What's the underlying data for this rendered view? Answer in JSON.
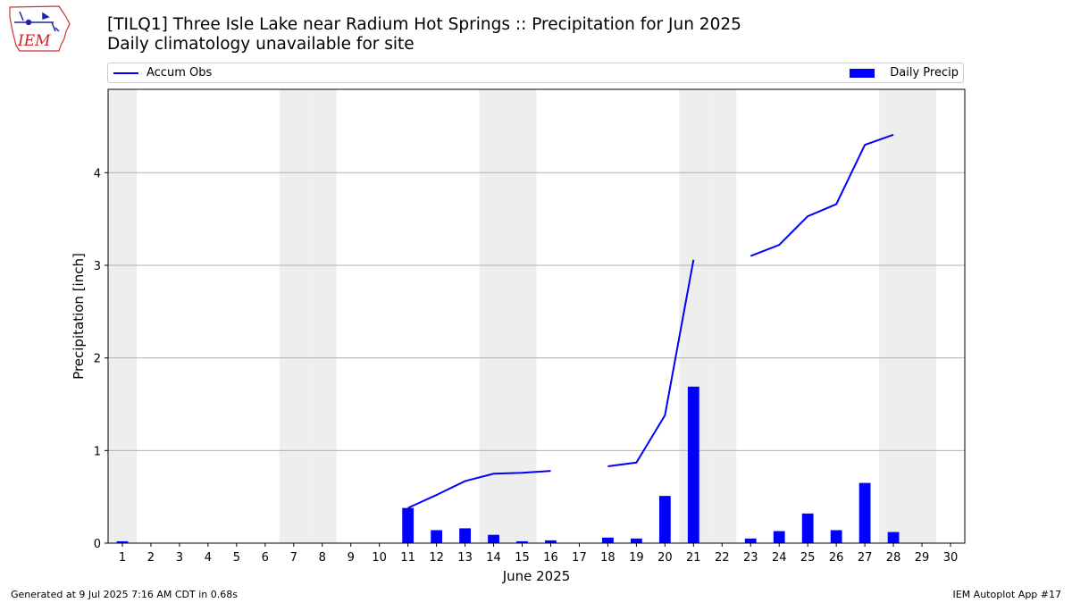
{
  "header": {
    "logo_text": "IEM",
    "title_line1": "[TILQ1] Three Isle Lake near Radium Hot Springs :: Precipitation for Jun 2025",
    "title_line2": "Daily climatology unavailable for site"
  },
  "legend": {
    "line_label": "Accum Obs",
    "bar_label": "Daily Precip"
  },
  "footer": {
    "generated": "Generated at 9 Jul 2025 7:16 AM CDT in 0.68s",
    "app": "IEM Autoplot App #17"
  },
  "colors": {
    "bars": "#0000ff",
    "line": "#0000ff",
    "weekend_shade": "#eeeeee",
    "grid": "#b0b0b0"
  },
  "chart_data": {
    "type": "bar",
    "title": "[TILQ1] Three Isle Lake near Radium Hot Springs :: Precipitation for Jun 2025",
    "subtitle": "Daily climatology unavailable for site",
    "xlabel": "June 2025",
    "ylabel": "Precipitation [inch]",
    "xlim": [
      0.5,
      30.5
    ],
    "ylim": [
      0,
      4.9
    ],
    "yticks": [
      0,
      1,
      2,
      3,
      4
    ],
    "grid": "horizontal",
    "legend_position": "top",
    "days": [
      1,
      2,
      3,
      4,
      5,
      6,
      7,
      8,
      9,
      10,
      11,
      12,
      13,
      14,
      15,
      16,
      17,
      18,
      19,
      20,
      21,
      22,
      23,
      24,
      25,
      26,
      27,
      28,
      29,
      30
    ],
    "shaded_days": [
      1,
      7,
      8,
      14,
      15,
      21,
      22,
      28,
      29
    ],
    "series": [
      {
        "name": "Daily Precip",
        "type": "bar",
        "values": [
          0.02,
          0,
          0,
          0,
          0,
          0,
          0,
          0,
          0,
          0,
          0.38,
          0.14,
          0.16,
          0.09,
          0.02,
          0.03,
          0,
          0.06,
          0.05,
          0.51,
          1.69,
          0,
          0.05,
          0.13,
          0.32,
          0.14,
          0.65,
          0.12,
          0,
          0
        ]
      },
      {
        "name": "Accum Obs",
        "type": "line",
        "values": [
          null,
          null,
          null,
          null,
          null,
          null,
          null,
          null,
          null,
          null,
          0.38,
          0.52,
          0.67,
          0.75,
          0.76,
          0.78,
          null,
          0.83,
          0.87,
          1.38,
          3.06,
          null,
          3.1,
          3.22,
          3.53,
          3.66,
          4.3,
          4.41,
          null,
          null
        ]
      }
    ]
  }
}
